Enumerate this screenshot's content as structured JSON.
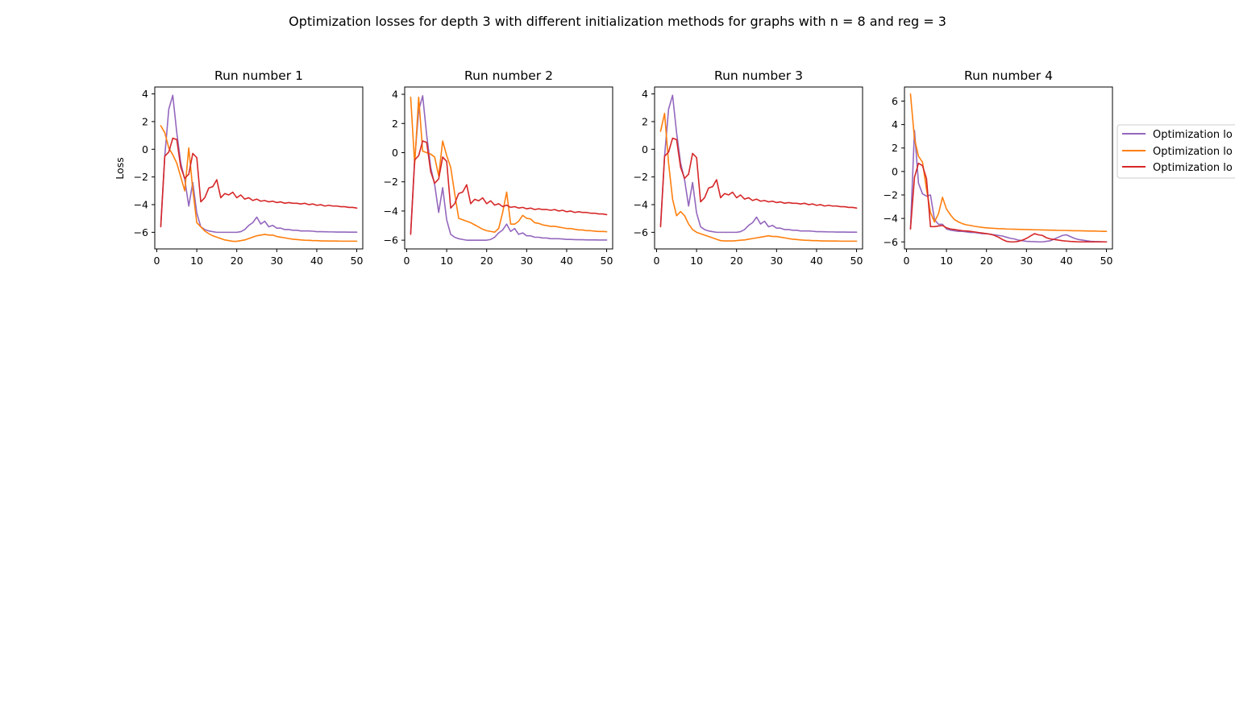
{
  "figure": {
    "title": "Optimization losses for depth 3 with different initialization methods for graphs with n = 8 and reg = 3",
    "ylabel": "Loss"
  },
  "legend": {
    "entries": [
      {
        "label": "Optimization lo",
        "color": "#9467bd"
      },
      {
        "label": "Optimization lo",
        "color": "#ff7f0e"
      },
      {
        "label": "Optimization lo",
        "color": "#d62728"
      }
    ]
  },
  "chart_data": [
    {
      "type": "line",
      "title": "Run number 1",
      "ylabel": "Loss",
      "xlim": [
        -0.5,
        51.5
      ],
      "ylim": [
        -7.2,
        4.5
      ],
      "xticks": [
        0,
        10,
        20,
        30,
        40,
        50
      ],
      "yticks": [
        -6,
        -4,
        -2,
        0,
        2,
        4
      ],
      "x": [
        1,
        2,
        3,
        4,
        5,
        6,
        7,
        8,
        9,
        10,
        11,
        12,
        13,
        14,
        15,
        16,
        17,
        18,
        19,
        20,
        21,
        22,
        23,
        24,
        25,
        26,
        27,
        28,
        29,
        30,
        31,
        32,
        33,
        34,
        35,
        36,
        37,
        38,
        39,
        40,
        41,
        42,
        43,
        44,
        45,
        46,
        47,
        48,
        49,
        50
      ],
      "series": [
        {
          "color": "#9467bd",
          "values": [
            -5.5,
            -0.5,
            2.9,
            3.9,
            1.2,
            -1.0,
            -2.2,
            -4.1,
            -2.4,
            -4.6,
            -5.6,
            -5.8,
            -5.9,
            -5.95,
            -6.0,
            -6.0,
            -6.0,
            -6.0,
            -6.0,
            -6.0,
            -5.95,
            -5.8,
            -5.5,
            -5.3,
            -4.9,
            -5.4,
            -5.2,
            -5.6,
            -5.5,
            -5.7,
            -5.7,
            -5.8,
            -5.8,
            -5.85,
            -5.85,
            -5.9,
            -5.9,
            -5.9,
            -5.92,
            -5.95,
            -5.95,
            -5.96,
            -5.97,
            -5.97,
            -5.98,
            -5.98,
            -5.98,
            -5.99,
            -5.99,
            -5.99
          ]
        },
        {
          "color": "#ff7f0e",
          "values": [
            1.7,
            1.2,
            0.1,
            -0.4,
            -1.0,
            -2.0,
            -3.0,
            0.1,
            -2.9,
            -5.3,
            -5.6,
            -5.9,
            -6.1,
            -6.25,
            -6.35,
            -6.45,
            -6.55,
            -6.6,
            -6.65,
            -6.65,
            -6.6,
            -6.55,
            -6.45,
            -6.35,
            -6.25,
            -6.2,
            -6.15,
            -6.2,
            -6.2,
            -6.3,
            -6.35,
            -6.4,
            -6.45,
            -6.5,
            -6.52,
            -6.55,
            -6.57,
            -6.58,
            -6.6,
            -6.6,
            -6.62,
            -6.62,
            -6.63,
            -6.63,
            -6.63,
            -6.64,
            -6.64,
            -6.64,
            -6.64,
            -6.64
          ]
        },
        {
          "color": "#d62728",
          "values": [
            -5.6,
            -0.5,
            -0.2,
            0.8,
            0.7,
            -1.3,
            -2.1,
            -1.8,
            -0.3,
            -0.6,
            -3.8,
            -3.5,
            -2.8,
            -2.7,
            -2.2,
            -3.5,
            -3.2,
            -3.3,
            -3.1,
            -3.5,
            -3.3,
            -3.6,
            -3.5,
            -3.7,
            -3.6,
            -3.75,
            -3.7,
            -3.8,
            -3.75,
            -3.85,
            -3.8,
            -3.9,
            -3.85,
            -3.9,
            -3.9,
            -3.95,
            -3.9,
            -4.0,
            -3.95,
            -4.05,
            -4.0,
            -4.1,
            -4.05,
            -4.1,
            -4.1,
            -4.15,
            -4.15,
            -4.2,
            -4.2,
            -4.25
          ]
        }
      ]
    },
    {
      "type": "line",
      "title": "Run number 2",
      "xlim": [
        -0.5,
        51.5
      ],
      "ylim": [
        -6.6,
        4.5
      ],
      "xticks": [
        0,
        10,
        20,
        30,
        40,
        50
      ],
      "yticks": [
        -6,
        -4,
        -2,
        0,
        2,
        4
      ],
      "x": [
        1,
        2,
        3,
        4,
        5,
        6,
        7,
        8,
        9,
        10,
        11,
        12,
        13,
        14,
        15,
        16,
        17,
        18,
        19,
        20,
        21,
        22,
        23,
        24,
        25,
        26,
        27,
        28,
        29,
        30,
        31,
        32,
        33,
        34,
        35,
        36,
        37,
        38,
        39,
        40,
        41,
        42,
        43,
        44,
        45,
        46,
        47,
        48,
        49,
        50
      ],
      "series": [
        {
          "color": "#9467bd",
          "values": [
            -5.5,
            -0.5,
            2.9,
            3.9,
            1.2,
            -1.0,
            -2.2,
            -4.1,
            -2.4,
            -4.6,
            -5.6,
            -5.8,
            -5.9,
            -5.95,
            -6.0,
            -6.0,
            -6.0,
            -6.0,
            -6.0,
            -6.0,
            -5.95,
            -5.8,
            -5.5,
            -5.3,
            -4.9,
            -5.4,
            -5.2,
            -5.6,
            -5.5,
            -5.7,
            -5.7,
            -5.8,
            -5.8,
            -5.85,
            -5.85,
            -5.9,
            -5.9,
            -5.9,
            -5.92,
            -5.95,
            -5.95,
            -5.96,
            -5.97,
            -5.97,
            -5.98,
            -5.98,
            -5.98,
            -5.99,
            -5.99,
            -5.99
          ]
        },
        {
          "color": "#ff7f0e",
          "values": [
            3.8,
            -0.8,
            3.8,
            0.1,
            0.0,
            -0.1,
            -0.3,
            -1.6,
            0.8,
            -0.2,
            -1.0,
            -2.8,
            -4.5,
            -4.6,
            -4.7,
            -4.8,
            -4.95,
            -5.1,
            -5.25,
            -5.35,
            -5.4,
            -5.45,
            -5.2,
            -4.1,
            -2.7,
            -4.9,
            -4.9,
            -4.7,
            -4.3,
            -4.5,
            -4.55,
            -4.8,
            -4.85,
            -4.95,
            -5.0,
            -5.05,
            -5.05,
            -5.1,
            -5.15,
            -5.2,
            -5.2,
            -5.25,
            -5.3,
            -5.3,
            -5.35,
            -5.35,
            -5.38,
            -5.4,
            -5.4,
            -5.42
          ]
        },
        {
          "color": "#d62728",
          "values": [
            -5.6,
            -0.5,
            -0.2,
            0.8,
            0.7,
            -1.3,
            -2.1,
            -1.8,
            -0.3,
            -0.6,
            -3.8,
            -3.5,
            -2.8,
            -2.7,
            -2.2,
            -3.5,
            -3.2,
            -3.3,
            -3.1,
            -3.5,
            -3.3,
            -3.6,
            -3.5,
            -3.7,
            -3.6,
            -3.75,
            -3.7,
            -3.8,
            -3.75,
            -3.85,
            -3.8,
            -3.9,
            -3.85,
            -3.9,
            -3.9,
            -3.95,
            -3.9,
            -4.0,
            -3.95,
            -4.05,
            -4.0,
            -4.1,
            -4.05,
            -4.1,
            -4.1,
            -4.15,
            -4.15,
            -4.2,
            -4.2,
            -4.25
          ]
        }
      ]
    },
    {
      "type": "line",
      "title": "Run number 3",
      "xlim": [
        -0.5,
        51.5
      ],
      "ylim": [
        -7.2,
        4.5
      ],
      "xticks": [
        0,
        10,
        20,
        30,
        40,
        50
      ],
      "yticks": [
        -6,
        -4,
        -2,
        0,
        2,
        4
      ],
      "x": [
        1,
        2,
        3,
        4,
        5,
        6,
        7,
        8,
        9,
        10,
        11,
        12,
        13,
        14,
        15,
        16,
        17,
        18,
        19,
        20,
        21,
        22,
        23,
        24,
        25,
        26,
        27,
        28,
        29,
        30,
        31,
        32,
        33,
        34,
        35,
        36,
        37,
        38,
        39,
        40,
        41,
        42,
        43,
        44,
        45,
        46,
        47,
        48,
        49,
        50
      ],
      "series": [
        {
          "color": "#9467bd",
          "values": [
            -5.5,
            -0.5,
            2.9,
            3.9,
            1.2,
            -1.0,
            -2.2,
            -4.1,
            -2.4,
            -4.6,
            -5.6,
            -5.8,
            -5.9,
            -5.95,
            -6.0,
            -6.0,
            -6.0,
            -6.0,
            -6.0,
            -6.0,
            -5.95,
            -5.8,
            -5.5,
            -5.3,
            -4.9,
            -5.4,
            -5.2,
            -5.6,
            -5.5,
            -5.7,
            -5.7,
            -5.8,
            -5.8,
            -5.85,
            -5.85,
            -5.9,
            -5.9,
            -5.9,
            -5.92,
            -5.95,
            -5.95,
            -5.96,
            -5.97,
            -5.97,
            -5.98,
            -5.98,
            -5.98,
            -5.99,
            -5.99,
            -5.99
          ]
        },
        {
          "color": "#ff7f0e",
          "values": [
            1.3,
            2.6,
            -1.0,
            -3.6,
            -4.8,
            -4.5,
            -4.8,
            -5.4,
            -5.8,
            -6.0,
            -6.1,
            -6.2,
            -6.3,
            -6.4,
            -6.5,
            -6.6,
            -6.62,
            -6.62,
            -6.62,
            -6.6,
            -6.57,
            -6.55,
            -6.5,
            -6.45,
            -6.4,
            -6.35,
            -6.3,
            -6.25,
            -6.3,
            -6.3,
            -6.35,
            -6.4,
            -6.45,
            -6.5,
            -6.52,
            -6.55,
            -6.57,
            -6.58,
            -6.6,
            -6.6,
            -6.62,
            -6.62,
            -6.63,
            -6.63,
            -6.63,
            -6.64,
            -6.64,
            -6.64,
            -6.64,
            -6.64
          ]
        },
        {
          "color": "#d62728",
          "values": [
            -5.6,
            -0.5,
            -0.2,
            0.8,
            0.7,
            -1.3,
            -2.1,
            -1.8,
            -0.3,
            -0.6,
            -3.8,
            -3.5,
            -2.8,
            -2.7,
            -2.2,
            -3.5,
            -3.2,
            -3.3,
            -3.1,
            -3.5,
            -3.3,
            -3.6,
            -3.5,
            -3.7,
            -3.6,
            -3.75,
            -3.7,
            -3.8,
            -3.75,
            -3.85,
            -3.8,
            -3.9,
            -3.85,
            -3.9,
            -3.9,
            -3.95,
            -3.9,
            -4.0,
            -3.95,
            -4.05,
            -4.0,
            -4.1,
            -4.05,
            -4.1,
            -4.1,
            -4.15,
            -4.15,
            -4.2,
            -4.2,
            -4.25
          ]
        }
      ]
    },
    {
      "type": "line",
      "title": "Run number 4",
      "xlim": [
        -0.5,
        51.5
      ],
      "ylim": [
        -6.6,
        7.2
      ],
      "xticks": [
        0,
        10,
        20,
        30,
        40,
        50
      ],
      "yticks": [
        -6,
        -4,
        -2,
        0,
        2,
        4,
        6
      ],
      "x": [
        1,
        2,
        3,
        4,
        5,
        6,
        7,
        8,
        9,
        10,
        11,
        12,
        13,
        14,
        15,
        16,
        17,
        18,
        19,
        20,
        21,
        22,
        23,
        24,
        25,
        26,
        27,
        28,
        29,
        30,
        31,
        32,
        33,
        34,
        35,
        36,
        37,
        38,
        39,
        40,
        41,
        42,
        43,
        44,
        45,
        46,
        47,
        48,
        49,
        50
      ],
      "series": [
        {
          "color": "#9467bd",
          "values": [
            -4.9,
            3.5,
            -1.0,
            -1.9,
            -2.1,
            -2.0,
            -4.1,
            -4.5,
            -4.5,
            -4.9,
            -5.0,
            -5.05,
            -5.1,
            -5.1,
            -5.15,
            -5.2,
            -5.2,
            -5.25,
            -5.3,
            -5.3,
            -5.35,
            -5.4,
            -5.45,
            -5.5,
            -5.6,
            -5.7,
            -5.75,
            -5.85,
            -5.9,
            -5.95,
            -5.97,
            -5.98,
            -6.0,
            -6.0,
            -5.95,
            -5.9,
            -5.75,
            -5.6,
            -5.45,
            -5.4,
            -5.55,
            -5.7,
            -5.8,
            -5.85,
            -5.9,
            -5.95,
            -5.97,
            -5.98,
            -5.99,
            -6.0
          ]
        },
        {
          "color": "#ff7f0e",
          "values": [
            6.6,
            2.8,
            1.3,
            0.8,
            -1.5,
            -3.5,
            -4.3,
            -3.6,
            -2.2,
            -3.2,
            -3.7,
            -4.1,
            -4.3,
            -4.45,
            -4.55,
            -4.6,
            -4.67,
            -4.72,
            -4.77,
            -4.8,
            -4.83,
            -4.85,
            -4.87,
            -4.88,
            -4.9,
            -4.91,
            -4.92,
            -4.93,
            -4.94,
            -4.95,
            -4.96,
            -4.97,
            -4.97,
            -4.98,
            -4.99,
            -5.0,
            -5.01,
            -5.02,
            -5.02,
            -5.03,
            -5.04,
            -5.05,
            -5.05,
            -5.06,
            -5.07,
            -5.08,
            -5.08,
            -5.09,
            -5.1,
            -5.1
          ]
        },
        {
          "color": "#d62728",
          "values": [
            -4.9,
            -0.5,
            0.7,
            0.5,
            -0.6,
            -4.7,
            -4.7,
            -4.65,
            -4.6,
            -4.8,
            -4.9,
            -4.95,
            -5.0,
            -5.05,
            -5.07,
            -5.1,
            -5.15,
            -5.2,
            -5.25,
            -5.3,
            -5.35,
            -5.45,
            -5.6,
            -5.8,
            -5.95,
            -6.0,
            -6.0,
            -5.95,
            -5.85,
            -5.7,
            -5.5,
            -5.3,
            -5.4,
            -5.45,
            -5.65,
            -5.75,
            -5.8,
            -5.85,
            -5.9,
            -5.93,
            -5.96,
            -5.98,
            -6.0,
            -6.0,
            -6.0,
            -6.0,
            -6.0,
            -6.0,
            -6.0,
            -6.0
          ]
        }
      ]
    }
  ]
}
